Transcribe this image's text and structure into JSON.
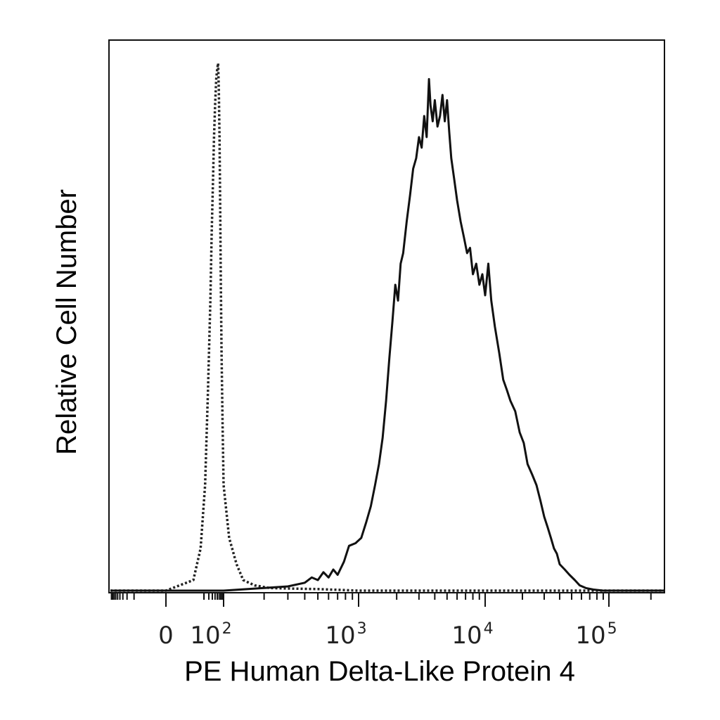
{
  "chart_data": {
    "type": "line",
    "title": "",
    "xlabel": "PE Human Delta-Like Protein 4",
    "ylabel": "Relative Cell Number",
    "x_scale": "biexponential",
    "x_ticks": [
      {
        "value": 0,
        "label": "0"
      },
      {
        "value": 100,
        "base": "10",
        "exp": "2"
      },
      {
        "value": 1000,
        "base": "10",
        "exp": "3"
      },
      {
        "value": 10000,
        "base": "10",
        "exp": "4"
      },
      {
        "value": 100000,
        "base": "10",
        "exp": "5"
      }
    ],
    "xlim": [
      -200,
      250000
    ],
    "ylim": [
      0,
      100
    ],
    "grid": false,
    "legend": "none",
    "series": [
      {
        "style": "dotted",
        "color": "#222222",
        "points": [
          [
            -200,
            0
          ],
          [
            0,
            0
          ],
          [
            8,
            2
          ],
          [
            15,
            8
          ],
          [
            22,
            20
          ],
          [
            28,
            38
          ],
          [
            34,
            55
          ],
          [
            38,
            68
          ],
          [
            42,
            77
          ],
          [
            46,
            86
          ],
          [
            50,
            92
          ],
          [
            55,
            97
          ],
          [
            60,
            99
          ],
          [
            64,
            100
          ],
          [
            68,
            95
          ],
          [
            72,
            86
          ],
          [
            76,
            72
          ],
          [
            80,
            58
          ],
          [
            85,
            45
          ],
          [
            92,
            32
          ],
          [
            100,
            20
          ],
          [
            110,
            10
          ],
          [
            125,
            5
          ],
          [
            140,
            2
          ],
          [
            170,
            1
          ],
          [
            220,
            0.5
          ],
          [
            300,
            0.4
          ],
          [
            500,
            0.3
          ],
          [
            1000,
            0
          ],
          [
            250000,
            0
          ]
        ]
      },
      {
        "style": "solid",
        "color": "#111111",
        "points": [
          [
            -200,
            0
          ],
          [
            100,
            0
          ],
          [
            200,
            0.5
          ],
          [
            300,
            0.8
          ],
          [
            400,
            1.5
          ],
          [
            450,
            2.5
          ],
          [
            500,
            2
          ],
          [
            550,
            3.5
          ],
          [
            600,
            2.5
          ],
          [
            650,
            4
          ],
          [
            700,
            3
          ],
          [
            780,
            5.5
          ],
          [
            850,
            8.5
          ],
          [
            950,
            9
          ],
          [
            1050,
            10
          ],
          [
            1150,
            13
          ],
          [
            1250,
            16
          ],
          [
            1350,
            20
          ],
          [
            1450,
            24
          ],
          [
            1550,
            29
          ],
          [
            1650,
            36
          ],
          [
            1750,
            44
          ],
          [
            1850,
            51
          ],
          [
            1950,
            58
          ],
          [
            2050,
            55
          ],
          [
            2150,
            62
          ],
          [
            2250,
            64
          ],
          [
            2400,
            70
          ],
          [
            2550,
            75
          ],
          [
            2700,
            80
          ],
          [
            2850,
            82
          ],
          [
            3000,
            86
          ],
          [
            3150,
            84
          ],
          [
            3300,
            90
          ],
          [
            3450,
            86
          ],
          [
            3600,
            97
          ],
          [
            3700,
            92
          ],
          [
            3850,
            89
          ],
          [
            4000,
            93
          ],
          [
            4200,
            88
          ],
          [
            4400,
            90
          ],
          [
            4600,
            94
          ],
          [
            4800,
            89
          ],
          [
            5000,
            93
          ],
          [
            5200,
            87
          ],
          [
            5400,
            82
          ],
          [
            5700,
            78
          ],
          [
            6000,
            74
          ],
          [
            6400,
            70
          ],
          [
            6800,
            67
          ],
          [
            7200,
            64
          ],
          [
            7600,
            65
          ],
          [
            8000,
            60
          ],
          [
            8500,
            62
          ],
          [
            9000,
            58
          ],
          [
            9500,
            60
          ],
          [
            10000,
            56
          ],
          [
            10600,
            62
          ],
          [
            11200,
            55
          ],
          [
            12000,
            50
          ],
          [
            13000,
            45
          ],
          [
            14000,
            40
          ],
          [
            15000,
            38
          ],
          [
            16000,
            36
          ],
          [
            17500,
            34
          ],
          [
            19000,
            30
          ],
          [
            20500,
            28
          ],
          [
            22000,
            24
          ],
          [
            24000,
            22
          ],
          [
            26000,
            20
          ],
          [
            28000,
            17
          ],
          [
            30000,
            14
          ],
          [
            32000,
            12
          ],
          [
            34000,
            10
          ],
          [
            36000,
            8
          ],
          [
            38000,
            7
          ],
          [
            40000,
            5
          ],
          [
            44000,
            4
          ],
          [
            48000,
            3
          ],
          [
            53000,
            2
          ],
          [
            58000,
            1
          ],
          [
            65000,
            0.5
          ],
          [
            75000,
            0.2
          ],
          [
            90000,
            0
          ],
          [
            250000,
            0
          ]
        ]
      }
    ]
  }
}
